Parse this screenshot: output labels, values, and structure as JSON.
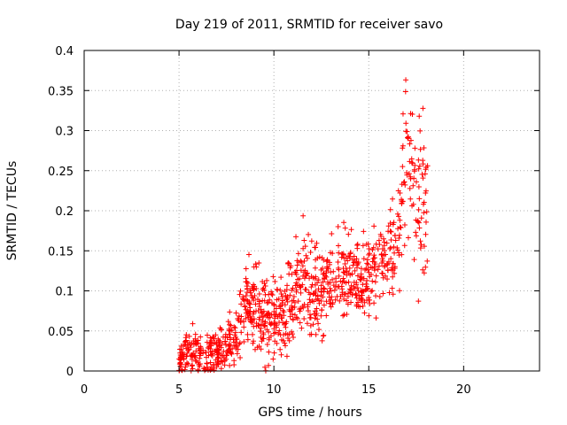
{
  "chart_data": {
    "type": "scatter",
    "title": "Day 219 of 2011, SRMTID for receiver savo",
    "xlabel": "GPS time / hours",
    "ylabel": "SRMTID / TECUs",
    "xlim": [
      0,
      24
    ],
    "ylim": [
      0,
      0.4
    ],
    "x_ticks": [
      "0",
      "5",
      "10",
      "15",
      "20"
    ],
    "y_ticks": [
      "0",
      "0.05",
      "0.1",
      "0.15",
      "0.2",
      "0.25",
      "0.3",
      "0.35",
      "0.4"
    ],
    "grid": true,
    "marker": "plus",
    "color": "#ff0000",
    "series": [
      {
        "name": "SRMTID",
        "trend": [
          {
            "x": 5.0,
            "y": 0.01,
            "spread": 0.015
          },
          {
            "x": 5.5,
            "y": 0.025,
            "spread": 0.03
          },
          {
            "x": 6.0,
            "y": 0.02,
            "spread": 0.03
          },
          {
            "x": 6.5,
            "y": 0.02,
            "spread": 0.03
          },
          {
            "x": 7.0,
            "y": 0.022,
            "spread": 0.03
          },
          {
            "x": 7.5,
            "y": 0.025,
            "spread": 0.03
          },
          {
            "x": 8.0,
            "y": 0.04,
            "spread": 0.04
          },
          {
            "x": 8.5,
            "y": 0.08,
            "spread": 0.045
          },
          {
            "x": 9.0,
            "y": 0.085,
            "spread": 0.05
          },
          {
            "x": 9.5,
            "y": 0.06,
            "spread": 0.05
          },
          {
            "x": 10.0,
            "y": 0.06,
            "spread": 0.05
          },
          {
            "x": 10.5,
            "y": 0.075,
            "spread": 0.05
          },
          {
            "x": 11.0,
            "y": 0.09,
            "spread": 0.05
          },
          {
            "x": 11.5,
            "y": 0.12,
            "spread": 0.06
          },
          {
            "x": 12.0,
            "y": 0.1,
            "spread": 0.05
          },
          {
            "x": 12.5,
            "y": 0.105,
            "spread": 0.05
          },
          {
            "x": 13.0,
            "y": 0.11,
            "spread": 0.05
          },
          {
            "x": 13.5,
            "y": 0.12,
            "spread": 0.05
          },
          {
            "x": 14.0,
            "y": 0.115,
            "spread": 0.05
          },
          {
            "x": 14.5,
            "y": 0.12,
            "spread": 0.05
          },
          {
            "x": 15.0,
            "y": 0.115,
            "spread": 0.05
          },
          {
            "x": 15.5,
            "y": 0.13,
            "spread": 0.05
          },
          {
            "x": 16.0,
            "y": 0.14,
            "spread": 0.05
          },
          {
            "x": 16.5,
            "y": 0.17,
            "spread": 0.07
          },
          {
            "x": 17.0,
            "y": 0.26,
            "spread": 0.12
          },
          {
            "x": 17.5,
            "y": 0.21,
            "spread": 0.1
          },
          {
            "x": 18.0,
            "y": 0.22,
            "spread": 0.12
          }
        ],
        "points_per_hour": 80,
        "x_range": [
          5.0,
          18.1
        ]
      }
    ]
  }
}
